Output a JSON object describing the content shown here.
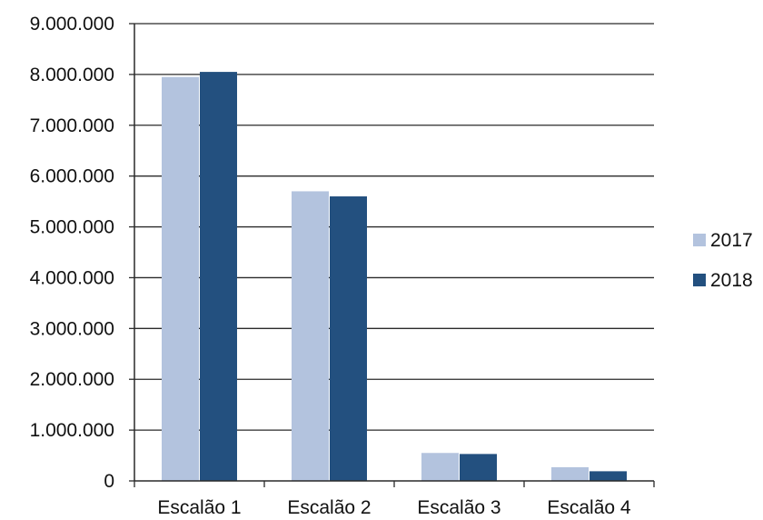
{
  "chart_data": {
    "type": "bar",
    "categories": [
      "Escalão 1",
      "Escalão 2",
      "Escalão 3",
      "Escalão 4"
    ],
    "series": [
      {
        "name": "2017",
        "color": "#b3c3de",
        "values": [
          7950000,
          5700000,
          550000,
          270000
        ]
      },
      {
        "name": "2018",
        "color": "#23507f",
        "values": [
          8050000,
          5600000,
          530000,
          190000
        ]
      }
    ],
    "ylim": [
      0,
      9000000
    ],
    "yticks": [
      0,
      1000000,
      2000000,
      3000000,
      4000000,
      5000000,
      6000000,
      7000000,
      8000000,
      9000000
    ],
    "ytick_labels": [
      "0",
      "1.000.000",
      "2.000.000",
      "3.000.000",
      "4.000.000",
      "5.000.000",
      "6.000.000",
      "7.000.000",
      "8.000.000",
      "9.000.000"
    ],
    "grid": "horizontal",
    "legend_position": "right",
    "title": "",
    "xlabel": "",
    "ylabel": ""
  }
}
